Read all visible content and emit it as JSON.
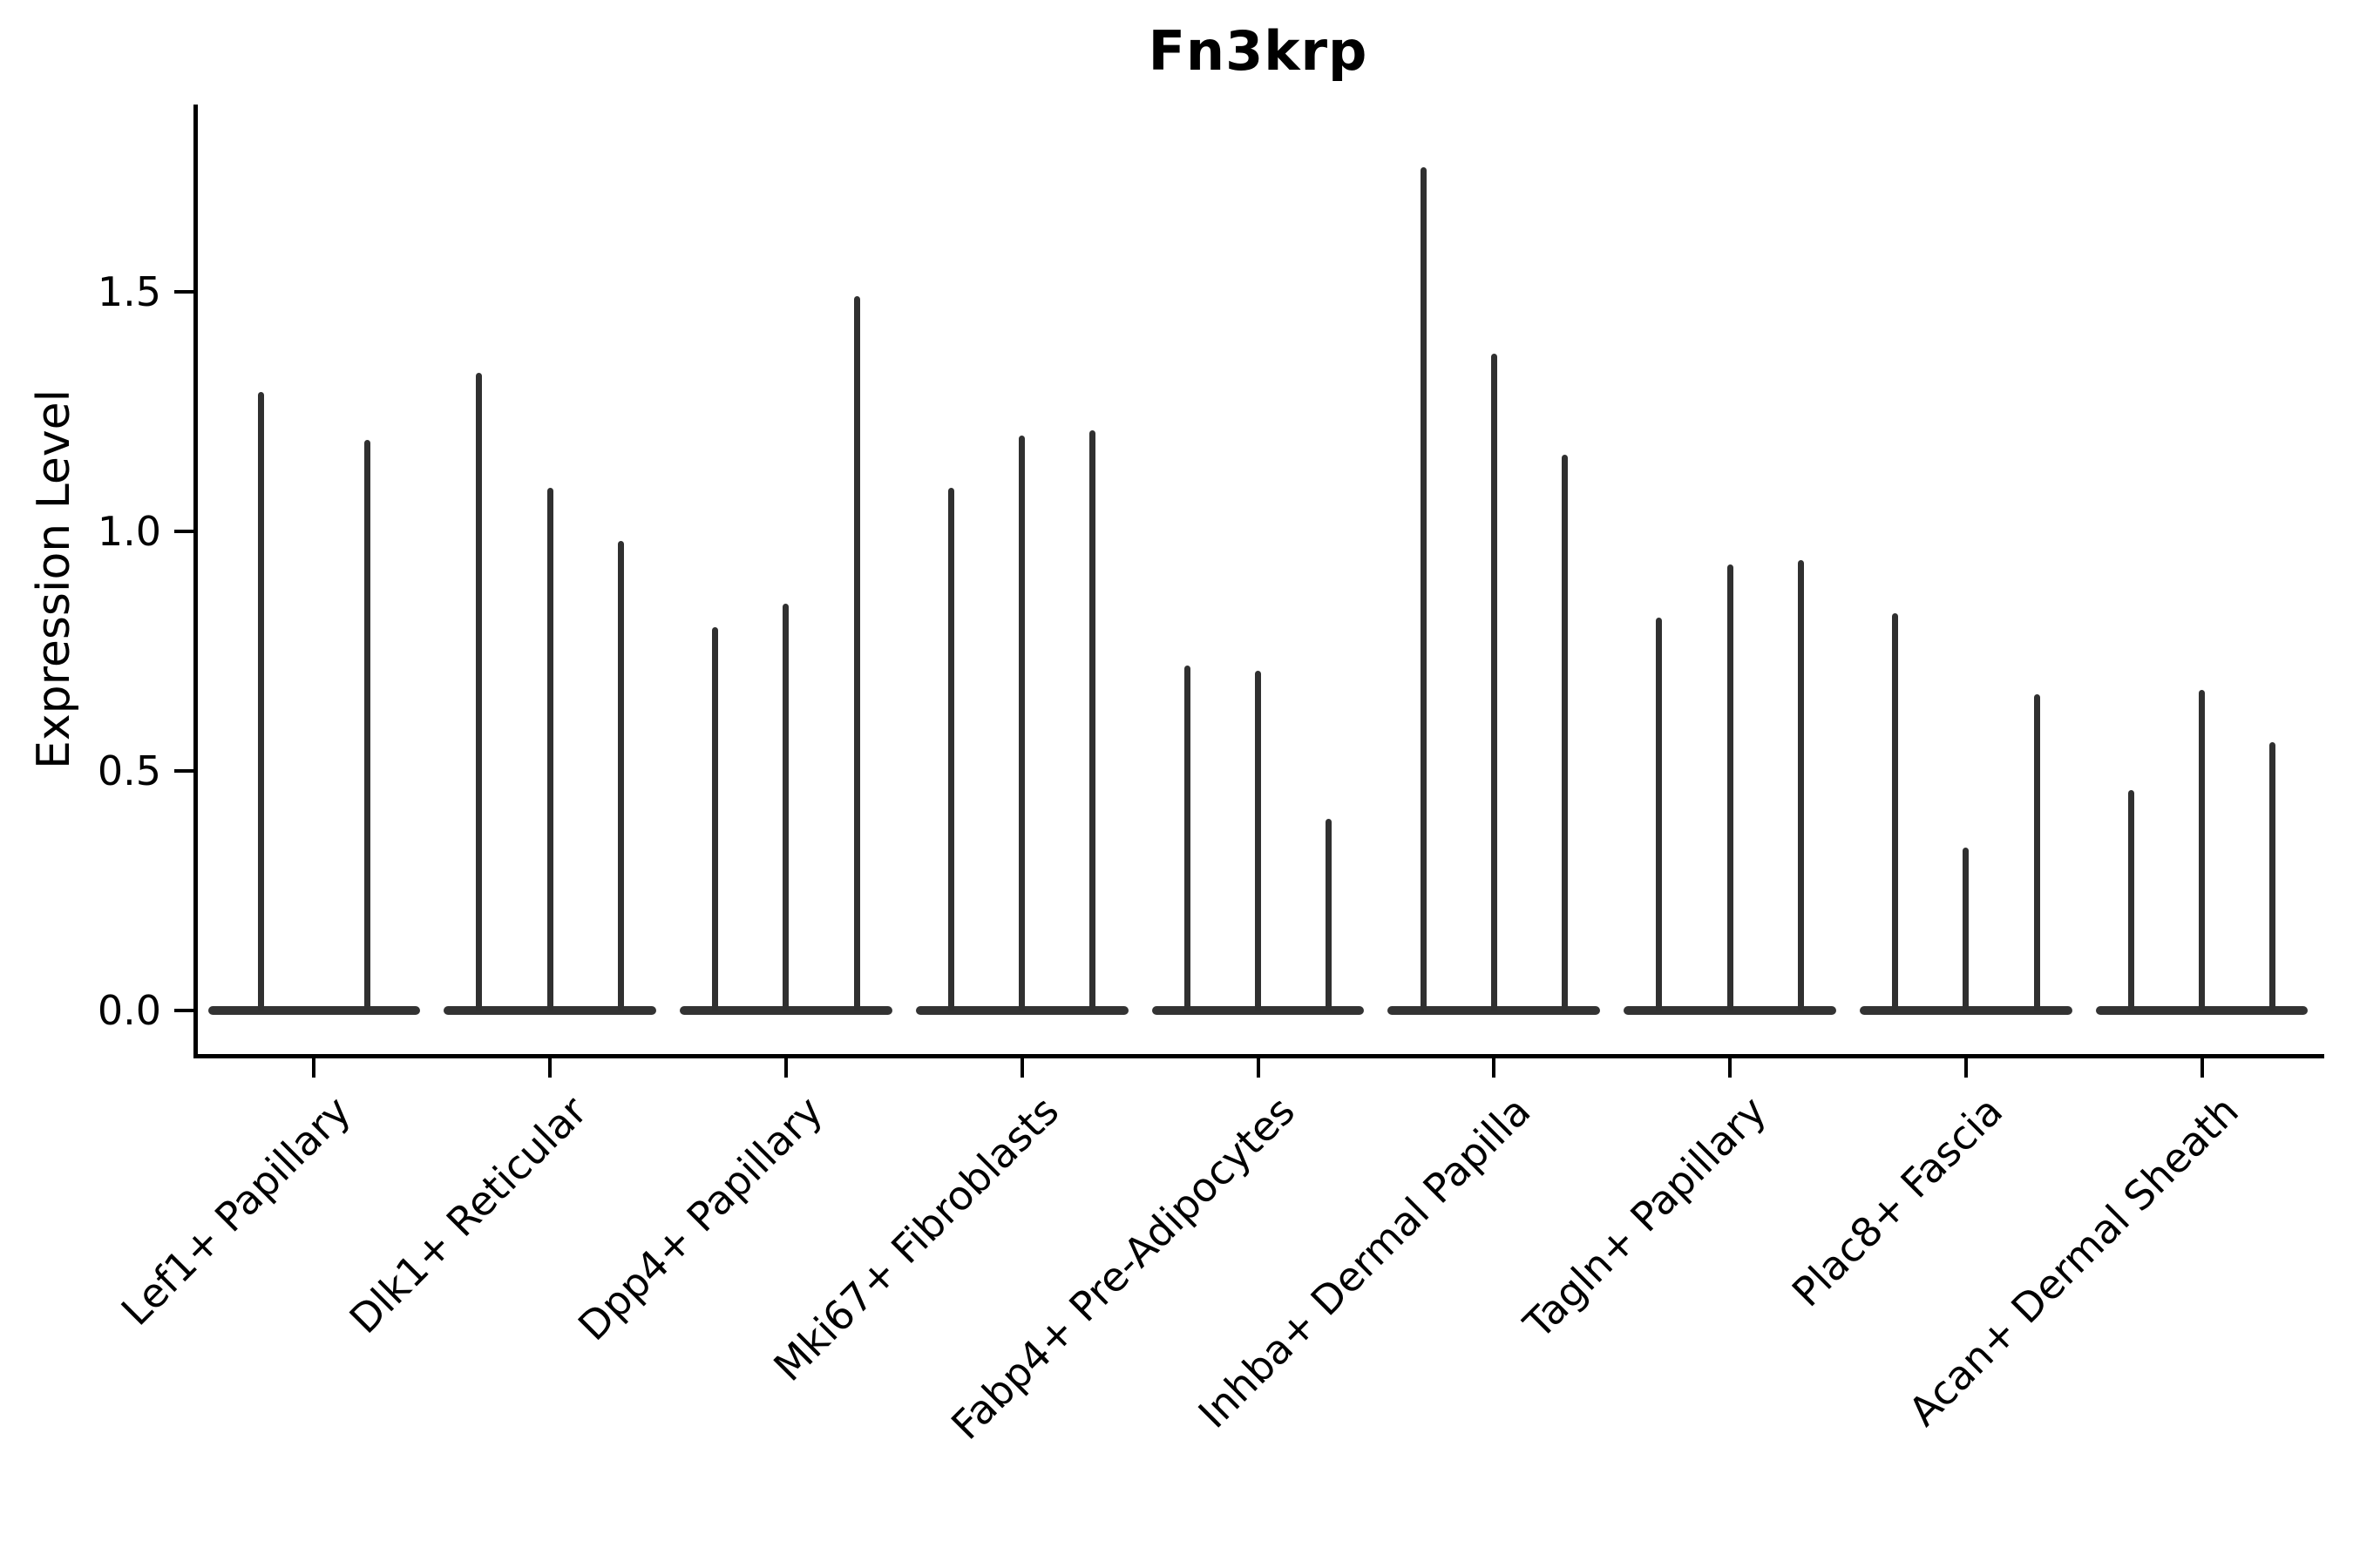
{
  "figure": {
    "background": "#ffffff"
  },
  "chart_data": {
    "type": "violin",
    "title": "Fn3krp",
    "xlabel": "",
    "ylabel": "Expression Level",
    "ylim": [
      -0.09,
      1.89
    ],
    "yticks": [
      0.0,
      0.5,
      1.0,
      1.5
    ],
    "ytick_labels": [
      "0.0",
      "0.5",
      "1.0",
      "1.5"
    ],
    "grid": false,
    "legend": "none",
    "violin_color": "#303030",
    "axis_color": "#000000",
    "shape_note": "needle violins: wide flat base at expression 0, thin spike up to max expression",
    "categories": [
      "Lef1+ Papillary",
      "Dlk1+ Reticular",
      "Dpp4+ Papillary",
      "Mki67+ Fibroblasts",
      "Fabp4+ Pre-Adipocytes",
      "Inhba+ Dermal Papilla",
      "Tagln+ Papillary",
      "Plac8+ Fascia",
      "Acan+ Dermal Sheath"
    ],
    "groups": [
      {
        "category": "Lef1+ Papillary",
        "violin_maxima": [
          1.29,
          1.19
        ]
      },
      {
        "category": "Dlk1+ Reticular",
        "violin_maxima": [
          1.33,
          1.09,
          0.98
        ]
      },
      {
        "category": "Dpp4+ Papillary",
        "violin_maxima": [
          0.8,
          0.85,
          1.49
        ]
      },
      {
        "category": "Mki67+ Fibroblasts",
        "violin_maxima": [
          1.09,
          1.2,
          1.21
        ]
      },
      {
        "category": "Fabp4+ Pre-Adipocytes",
        "violin_maxima": [
          0.72,
          0.71,
          0.4
        ]
      },
      {
        "category": "Inhba+ Dermal Papilla",
        "violin_maxima": [
          1.76,
          1.37,
          1.16
        ]
      },
      {
        "category": "Tagln+ Papillary",
        "violin_maxima": [
          0.82,
          0.93,
          0.94
        ]
      },
      {
        "category": "Plac8+ Fascia",
        "violin_maxima": [
          0.83,
          0.34,
          0.66
        ]
      },
      {
        "category": "Acan+ Dermal Sheath",
        "violin_maxima": [
          0.46,
          0.67,
          0.56
        ]
      }
    ]
  }
}
